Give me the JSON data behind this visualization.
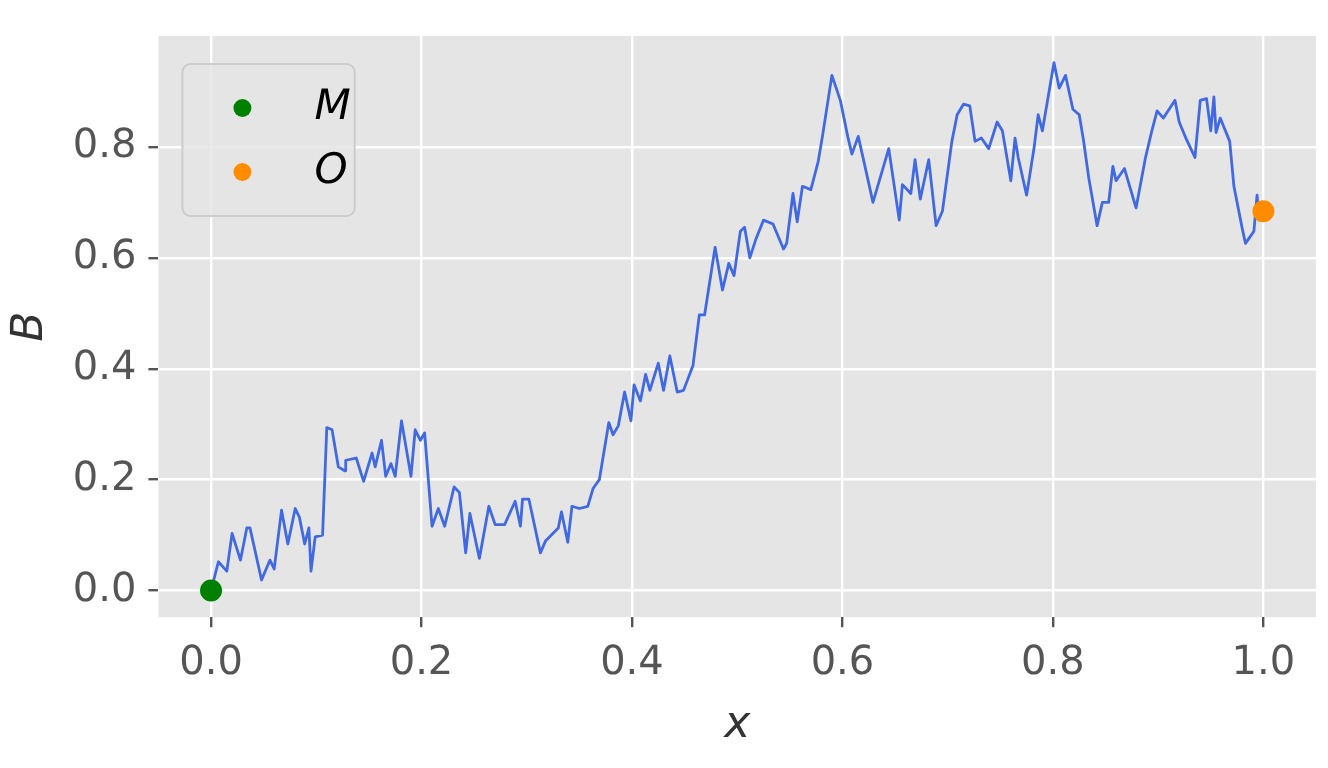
{
  "chart_data": {
    "type": "line",
    "xlabel": "x",
    "ylabel": "B",
    "xlim": [
      -0.05,
      1.05
    ],
    "xticks": [
      {
        "value": 0,
        "label": "0.0"
      },
      {
        "value": 0.2,
        "label": "0.2"
      },
      {
        "value": 0.4,
        "label": "0.4"
      },
      {
        "value": 0.6,
        "label": "0.6"
      },
      {
        "value": 0.8,
        "label": "0.8"
      },
      {
        "value": 1,
        "label": "1.0"
      }
    ],
    "ylim": [
      -0.048,
      1.0
    ],
    "yticks": [
      {
        "value": 0,
        "label": "0.0"
      },
      {
        "value": 0.2,
        "label": "0.2"
      },
      {
        "value": 0.4,
        "label": "0.4"
      },
      {
        "value": 0.6,
        "label": "0.6"
      },
      {
        "value": 0.8,
        "label": "0.8"
      }
    ],
    "grid": true,
    "legend": "top left",
    "series": [
      {
        "color": "#4169e1",
        "marker": "none",
        "x": [
          0,
          0.007,
          0.015,
          0.02,
          0.028,
          0.034,
          0.037,
          0.048,
          0.056,
          0.06,
          0.067,
          0.073,
          0.08,
          0.084,
          0.089,
          0.093,
          0.095,
          0.099,
          0.106,
          0.11,
          0.115,
          0.121,
          0.127,
          0.128,
          0.138,
          0.145,
          0.153,
          0.156,
          0.162,
          0.166,
          0.171,
          0.175,
          0.181,
          0.19,
          0.194,
          0.199,
          0.203,
          0.21,
          0.216,
          0.222,
          0.231,
          0.236,
          0.242,
          0.246,
          0.255,
          0.264,
          0.27,
          0.279,
          0.289,
          0.294,
          0.296,
          0.302,
          0.313,
          0.318,
          0.33,
          0.333,
          0.339,
          0.343,
          0.35,
          0.358,
          0.363,
          0.369,
          0.378,
          0.382,
          0.387,
          0.393,
          0.399,
          0.402,
          0.408,
          0.413,
          0.417,
          0.425,
          0.43,
          0.436,
          0.443,
          0.449,
          0.458,
          0.464,
          0.469,
          0.479,
          0.486,
          0.492,
          0.497,
          0.503,
          0.507,
          0.512,
          0.518,
          0.525,
          0.534,
          0.544,
          0.547,
          0.553,
          0.557,
          0.562,
          0.57,
          0.577,
          0.581,
          0.59,
          0.598,
          0.605,
          0.609,
          0.615,
          0.62,
          0.629,
          0.644,
          0.654,
          0.657,
          0.665,
          0.669,
          0.674,
          0.682,
          0.689,
          0.695,
          0.704,
          0.709,
          0.715,
          0.721,
          0.726,
          0.732,
          0.739,
          0.747,
          0.752,
          0.76,
          0.764,
          0.767,
          0.775,
          0.782,
          0.786,
          0.79,
          0.801,
          0.806,
          0.812,
          0.819,
          0.825,
          0.829,
          0.834,
          0.842,
          0.847,
          0.853,
          0.857,
          0.86,
          0.868,
          0.879,
          0.888,
          0.894,
          0.899,
          0.905,
          0.916,
          0.92,
          0.927,
          0.935,
          0.94,
          0.946,
          0.95,
          0.953,
          0.955,
          0.959,
          0.968,
          0.972,
          0.98,
          0.983,
          0.991,
          0.994,
          0.996,
          0.998,
          1.0
        ],
        "values": [
          0,
          0.052,
          0.035,
          0.103,
          0.055,
          0.113,
          0.113,
          0.019,
          0.055,
          0.039,
          0.145,
          0.084,
          0.148,
          0.132,
          0.084,
          0.113,
          0.035,
          0.097,
          0.1,
          0.294,
          0.29,
          0.223,
          0.216,
          0.235,
          0.239,
          0.197,
          0.248,
          0.223,
          0.271,
          0.206,
          0.229,
          0.206,
          0.306,
          0.206,
          0.29,
          0.271,
          0.284,
          0.116,
          0.148,
          0.116,
          0.187,
          0.177,
          0.068,
          0.139,
          0.058,
          0.152,
          0.119,
          0.119,
          0.161,
          0.116,
          0.165,
          0.165,
          0.068,
          0.09,
          0.113,
          0.142,
          0.087,
          0.152,
          0.148,
          0.152,
          0.184,
          0.2,
          0.303,
          0.281,
          0.297,
          0.358,
          0.306,
          0.371,
          0.342,
          0.39,
          0.361,
          0.41,
          0.361,
          0.423,
          0.358,
          0.361,
          0.406,
          0.497,
          0.497,
          0.619,
          0.542,
          0.59,
          0.568,
          0.648,
          0.655,
          0.6,
          0.635,
          0.668,
          0.661,
          0.616,
          0.626,
          0.716,
          0.665,
          0.729,
          0.723,
          0.774,
          0.819,
          0.929,
          0.884,
          0.819,
          0.787,
          0.819,
          0.777,
          0.7,
          0.797,
          0.668,
          0.732,
          0.716,
          0.777,
          0.706,
          0.777,
          0.658,
          0.684,
          0.81,
          0.858,
          0.877,
          0.874,
          0.81,
          0.816,
          0.797,
          0.845,
          0.829,
          0.739,
          0.816,
          0.781,
          0.713,
          0.797,
          0.858,
          0.829,
          0.952,
          0.906,
          0.929,
          0.868,
          0.858,
          0.813,
          0.745,
          0.658,
          0.7,
          0.7,
          0.765,
          0.739,
          0.761,
          0.69,
          0.781,
          0.829,
          0.865,
          0.852,
          0.884,
          0.845,
          0.813,
          0.781,
          0.884,
          0.887,
          0.829,
          0.89,
          0.826,
          0.852,
          0.81,
          0.729,
          0.652,
          0.626,
          0.648,
          0.713,
          0.668,
          0.7,
          0.684
        ]
      },
      {
        "type": "scatter",
        "name": "M",
        "color": "#008000",
        "marker": "circle",
        "x": [
          0
        ],
        "values": [
          0
        ]
      },
      {
        "type": "scatter",
        "name": "O",
        "color": "#ff8c00",
        "marker": "circle",
        "x": [
          1.0
        ],
        "values": [
          0.684
        ]
      }
    ]
  }
}
